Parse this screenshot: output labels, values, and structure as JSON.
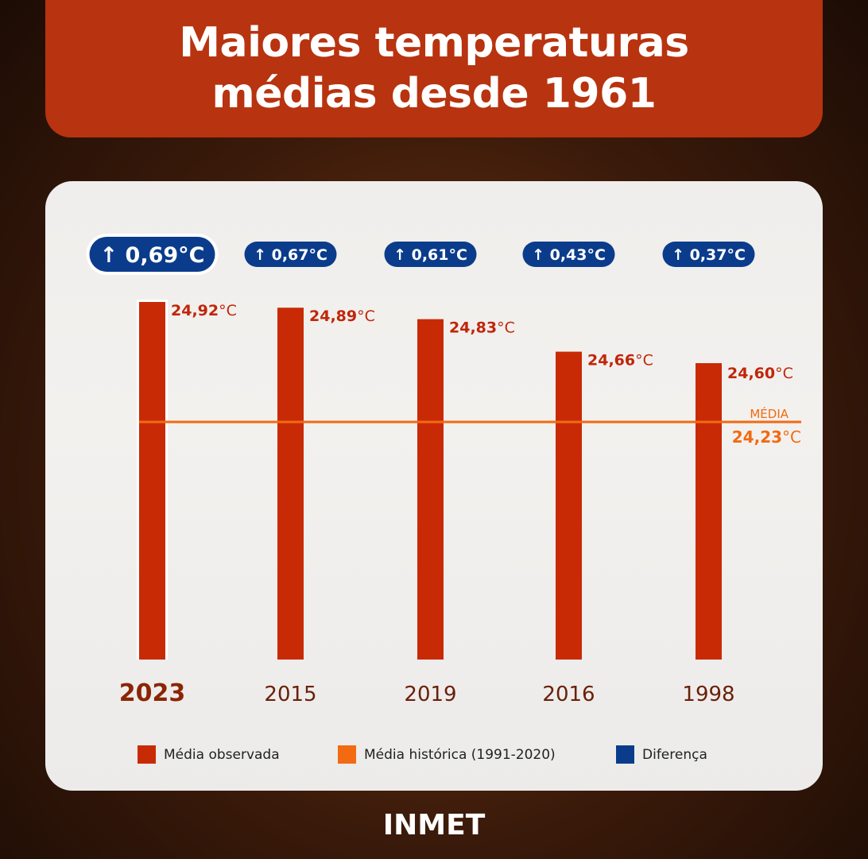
{
  "title_line1": "Maiores temperaturas",
  "title_line2": "médias desde 1961",
  "chart_data": {
    "type": "bar",
    "categories": [
      "2023",
      "2015",
      "2019",
      "2016",
      "1998"
    ],
    "values": [
      24.92,
      24.89,
      24.83,
      24.66,
      24.6
    ],
    "value_labels": [
      "24,92",
      "24,89",
      "24,83",
      "24,66",
      "24,60"
    ],
    "differences": [
      "0,69°C",
      "0,67°C",
      "0,61°C",
      "0,43°C",
      "0,37°C"
    ],
    "unit": "°C",
    "reference_line": {
      "label": "MÉDIA",
      "value": 24.23,
      "value_label": "24,23"
    },
    "legend": [
      "Média observada",
      "Média histórica (1991-2020)",
      "Diferença"
    ],
    "colors": {
      "observed": "#c92a06",
      "historic": "#f26a12",
      "difference": "#0b3c8c"
    },
    "ylim": [
      23.05,
      24.92
    ]
  },
  "source": "INMET"
}
